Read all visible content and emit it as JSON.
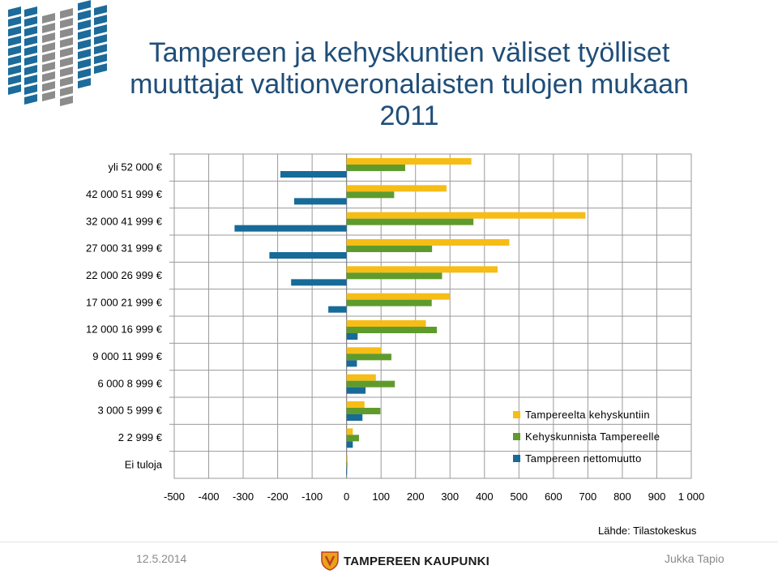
{
  "title_line1": "Tampereen ja kehyskuntien väliset työlliset",
  "title_line2": "muuttajat valtionveronalaisten tulojen mukaan",
  "title_line3": "2011",
  "source": "Lähde: Tilastokeskus",
  "footer": {
    "date": "12.5.2014",
    "organization": "TAMPEREEN KAUPUNKI",
    "author": "Jukka Tapio"
  },
  "colors": {
    "title": "#1f4e79",
    "series_from_tampere": "#f6bd16",
    "series_to_tampere": "#5f9b2c",
    "series_net": "#176b98",
    "logo_blue": "#1c6b9a",
    "logo_grey": "#8c8c8c"
  },
  "icons": {
    "logo_mark": "wave-grid-logo-icon",
    "org_crest": "tampere-coat-of-arms-icon"
  },
  "chart_data": {
    "type": "bar",
    "orientation": "horizontal",
    "categories": [
      "yli 52 000 €",
      "42 000 51 999 €",
      "32 000 41 999 €",
      "27 000 31 999 €",
      "22 000 26 999 €",
      "17 000 21 999 €",
      "12 000 16 999 €",
      "9 000 11 999 €",
      "6 000 8 999 €",
      "3 000 5 999 €",
      "2 2 999 €",
      "Ei tuloja"
    ],
    "series": [
      {
        "name": "Tampereelta kehyskuntiin",
        "values": [
          362,
          290,
          693,
          472,
          438,
          300,
          230,
          100,
          85,
          52,
          18,
          3
        ]
      },
      {
        "name": "Kehyskunnista Tampereelle",
        "values": [
          170,
          138,
          368,
          248,
          277,
          247,
          262,
          130,
          140,
          98,
          36,
          2
        ]
      },
      {
        "name": "Tampereen nettomuutto",
        "values": [
          -192,
          -152,
          -325,
          -224,
          -161,
          -53,
          32,
          30,
          55,
          46,
          18,
          -1
        ]
      }
    ],
    "xlim": [
      -500,
      1000
    ],
    "xticks": [
      "-500",
      "-400",
      "-300",
      "-200",
      "-100",
      "0",
      "100",
      "200",
      "300",
      "400",
      "500",
      "600",
      "700",
      "800",
      "900",
      "1 000"
    ],
    "grid": true,
    "legend_position": "lower-right inside"
  }
}
